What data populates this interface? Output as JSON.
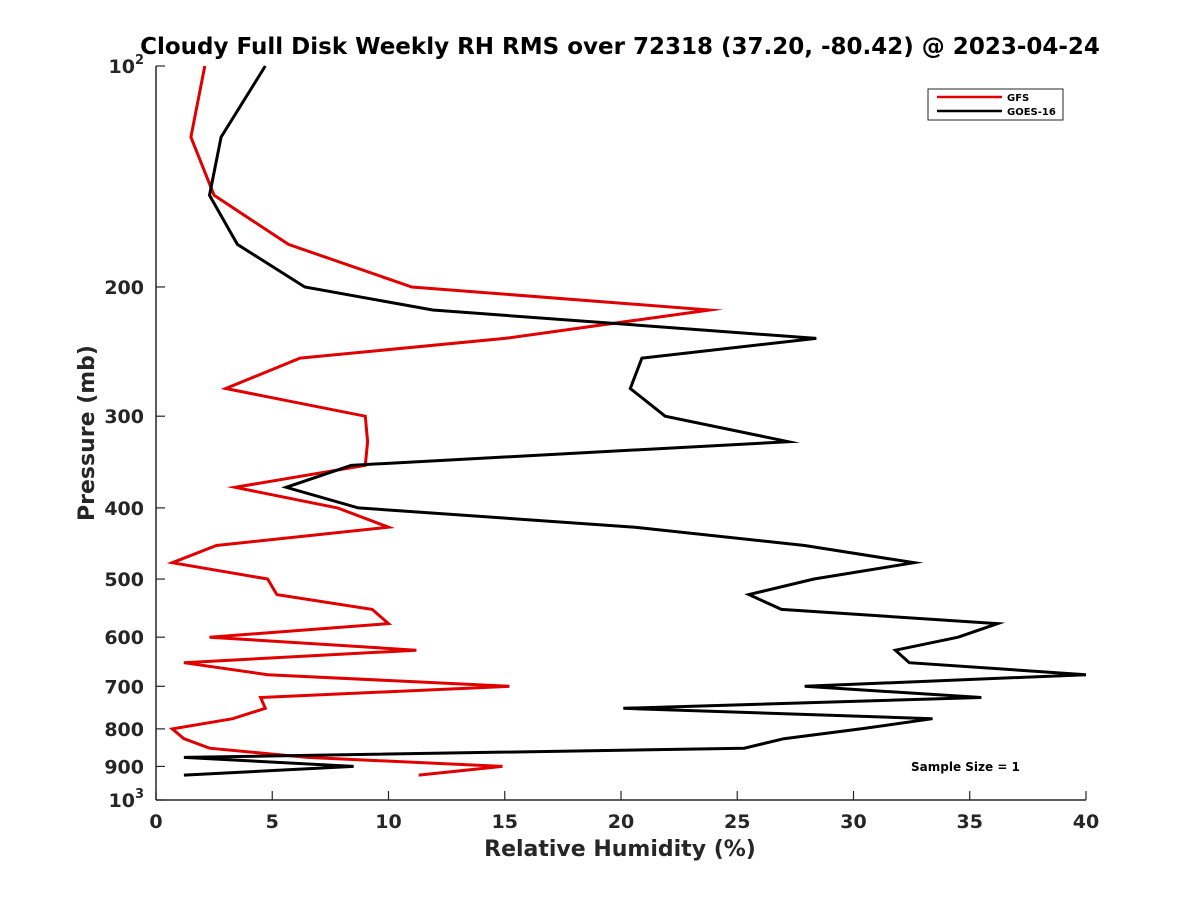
{
  "chart_data": {
    "type": "line",
    "title": "Cloudy Full Disk Weekly RH RMS over 72318 (37.20, -80.42) @ 2023-04-24",
    "xlabel": "Relative Humidity (%)",
    "ylabel": "Pressure (mb)",
    "xlim": [
      0,
      40
    ],
    "ylim": [
      100,
      1000
    ],
    "y_scale": "log",
    "y_reversed": true,
    "grid": false,
    "legend_position": "top-right",
    "x_ticks": [
      {
        "value": 0,
        "label": "0"
      },
      {
        "value": 5,
        "label": "5"
      },
      {
        "value": 10,
        "label": "10"
      },
      {
        "value": 15,
        "label": "15"
      },
      {
        "value": 20,
        "label": "20"
      },
      {
        "value": 25,
        "label": "25"
      },
      {
        "value": 30,
        "label": "30"
      },
      {
        "value": 35,
        "label": "35"
      },
      {
        "value": 40,
        "label": "40"
      }
    ],
    "y_ticks": [
      {
        "value": 100,
        "base": "10",
        "exp": "2"
      },
      {
        "value": 200,
        "label": "200"
      },
      {
        "value": 300,
        "label": "300"
      },
      {
        "value": 400,
        "label": "400"
      },
      {
        "value": 500,
        "label": "500"
      },
      {
        "value": 600,
        "label": "600"
      },
      {
        "value": 700,
        "label": "700"
      },
      {
        "value": 800,
        "label": "800"
      },
      {
        "value": 900,
        "label": "900"
      },
      {
        "value": 1000,
        "base": "10",
        "exp": "3"
      }
    ],
    "series": [
      {
        "name": "GFS",
        "color": "#e00000",
        "points": [
          [
            2.1,
            100
          ],
          [
            1.5,
            125
          ],
          [
            2.5,
            150
          ],
          [
            5.7,
            175
          ],
          [
            11.0,
            200
          ],
          [
            23.8,
            215
          ],
          [
            15.0,
            235
          ],
          [
            6.2,
            250
          ],
          [
            3.0,
            275
          ],
          [
            9.0,
            300
          ],
          [
            9.1,
            325
          ],
          [
            9.0,
            350
          ],
          [
            3.4,
            375
          ],
          [
            7.8,
            400
          ],
          [
            10.0,
            425
          ],
          [
            2.6,
            450
          ],
          [
            0.7,
            475
          ],
          [
            4.8,
            500
          ],
          [
            5.2,
            525
          ],
          [
            9.3,
            550
          ],
          [
            10.0,
            575
          ],
          [
            2.3,
            600
          ],
          [
            11.2,
            625
          ],
          [
            1.2,
            650
          ],
          [
            4.8,
            675
          ],
          [
            15.2,
            700
          ],
          [
            4.5,
            725
          ],
          [
            4.7,
            750
          ],
          [
            3.3,
            775
          ],
          [
            0.7,
            800
          ],
          [
            1.2,
            825
          ],
          [
            2.3,
            850
          ],
          [
            6.5,
            875
          ],
          [
            14.9,
            900
          ],
          [
            11.3,
            925
          ]
        ]
      },
      {
        "name": "GOES-16",
        "color": "#000000",
        "points": [
          [
            4.7,
            100
          ],
          [
            2.8,
            125
          ],
          [
            2.3,
            150
          ],
          [
            3.5,
            175
          ],
          [
            6.4,
            200
          ],
          [
            11.9,
            215
          ],
          [
            28.4,
            235
          ],
          [
            20.9,
            250
          ],
          [
            20.4,
            275
          ],
          [
            21.9,
            300
          ],
          [
            27.2,
            325
          ],
          [
            8.4,
            350
          ],
          [
            5.6,
            375
          ],
          [
            8.7,
            400
          ],
          [
            20.6,
            425
          ],
          [
            27.9,
            450
          ],
          [
            32.6,
            475
          ],
          [
            28.3,
            500
          ],
          [
            25.5,
            525
          ],
          [
            26.9,
            550
          ],
          [
            36.2,
            575
          ],
          [
            34.5,
            600
          ],
          [
            31.8,
            625
          ],
          [
            32.4,
            650
          ],
          [
            40.0,
            675
          ],
          [
            27.9,
            700
          ],
          [
            35.5,
            725
          ],
          [
            20.1,
            750
          ],
          [
            33.4,
            775
          ],
          [
            30.3,
            800
          ],
          [
            27.0,
            825
          ],
          [
            25.3,
            850
          ],
          [
            1.2,
            875
          ],
          [
            8.5,
            900
          ],
          [
            1.2,
            925
          ]
        ]
      }
    ],
    "legend": [
      {
        "label": "GFS",
        "color": "#e00000"
      },
      {
        "label": "GOES-16",
        "color": "#000000"
      }
    ],
    "annotations": [
      {
        "text": "Sample Size = 1"
      }
    ]
  }
}
